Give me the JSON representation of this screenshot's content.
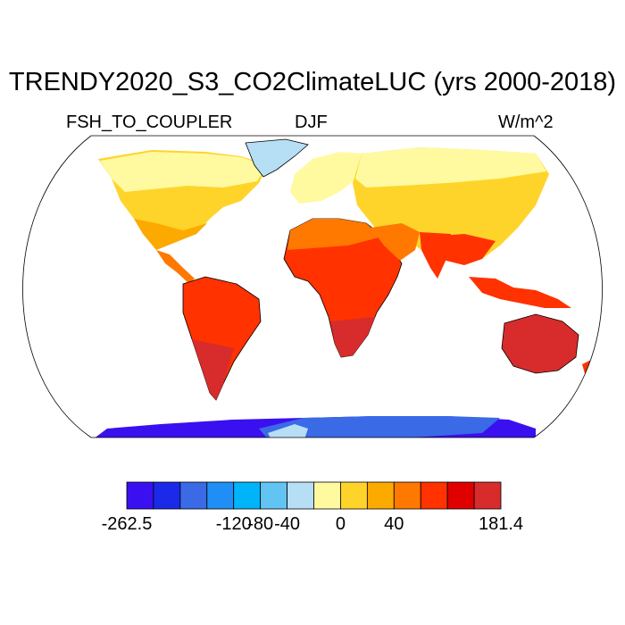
{
  "title": "TRENDY2020_S3_CO2ClimateLUC (yrs 2000-2018)",
  "left_label": "FSH_TO_COUPLER",
  "center_label": "DJF",
  "right_label": "W/m^2",
  "colorbar": {
    "colors": [
      "#3b10f0",
      "#1a2ae8",
      "#3a6ae6",
      "#1f8ef5",
      "#00b4fa",
      "#62c4f2",
      "#b6def4",
      "#fffaa0",
      "#ffd42a",
      "#fcaa00",
      "#ff7800",
      "#ff3200",
      "#e00000",
      "#d82c2c"
    ],
    "tick_labels": [
      "-262.5",
      "-120",
      "-80",
      "-40",
      "0",
      "40",
      "181.4"
    ]
  },
  "colors": {
    "ocean": "#ffffff",
    "coastline": "#000000"
  }
}
